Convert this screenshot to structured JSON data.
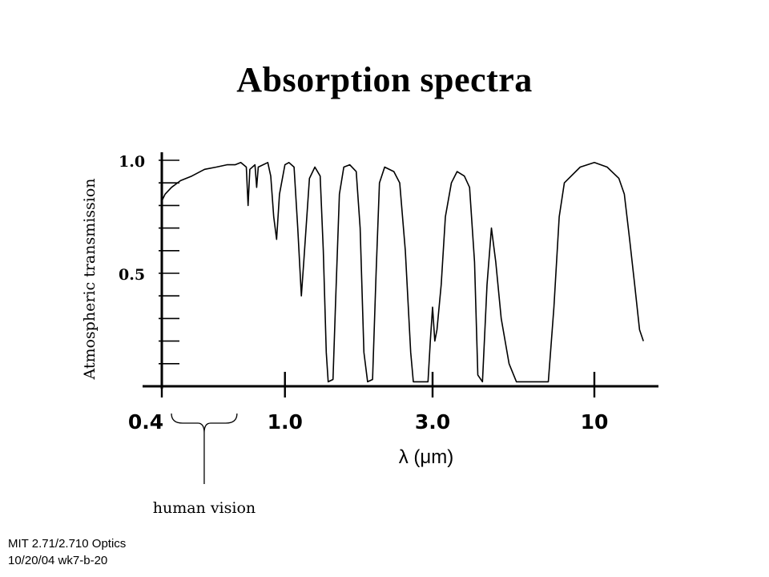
{
  "slide": {
    "title": "Absorption spectra",
    "footer_line1": "MIT 2.71/2.710 Optics",
    "footer_line2": "10/20/04 wk7-b-20"
  },
  "colors": {
    "background": "#ffffff",
    "ink": "#000000"
  },
  "chart_data": {
    "type": "line",
    "title": "",
    "ylabel": "Atmospheric transmission",
    "xlabel": "λ (μm)",
    "xscale": "log",
    "xlim": [
      0.4,
      15
    ],
    "ylim": [
      0,
      1.0
    ],
    "x_ticks": [
      {
        "value": 0.4,
        "label": "0.4"
      },
      {
        "value": 1.0,
        "label": "1.0"
      },
      {
        "value": 3.0,
        "label": "3.0"
      },
      {
        "value": 10,
        "label": "10"
      }
    ],
    "y_ticks": [
      {
        "value": 1.0,
        "label": "1.0"
      },
      {
        "value": 0.5,
        "label": "0.5"
      }
    ],
    "grid": false,
    "annotation": "human vision",
    "annotation_range": [
      0.4,
      0.7
    ],
    "series": [
      {
        "name": "",
        "points": [
          [
            0.4,
            0.82
          ],
          [
            0.41,
            0.85
          ],
          [
            0.43,
            0.88
          ],
          [
            0.46,
            0.91
          ],
          [
            0.5,
            0.93
          ],
          [
            0.55,
            0.96
          ],
          [
            0.6,
            0.97
          ],
          [
            0.65,
            0.98
          ],
          [
            0.69,
            0.98
          ],
          [
            0.72,
            0.99
          ],
          [
            0.75,
            0.97
          ],
          [
            0.76,
            0.8
          ],
          [
            0.77,
            0.96
          ],
          [
            0.8,
            0.98
          ],
          [
            0.81,
            0.88
          ],
          [
            0.82,
            0.97
          ],
          [
            0.88,
            0.99
          ],
          [
            0.9,
            0.93
          ],
          [
            0.92,
            0.75
          ],
          [
            0.94,
            0.65
          ],
          [
            0.96,
            0.85
          ],
          [
            1.0,
            0.98
          ],
          [
            1.03,
            0.99
          ],
          [
            1.07,
            0.97
          ],
          [
            1.1,
            0.7
          ],
          [
            1.13,
            0.4
          ],
          [
            1.15,
            0.55
          ],
          [
            1.2,
            0.92
          ],
          [
            1.25,
            0.97
          ],
          [
            1.3,
            0.93
          ],
          [
            1.33,
            0.6
          ],
          [
            1.36,
            0.15
          ],
          [
            1.38,
            0.02
          ],
          [
            1.43,
            0.03
          ],
          [
            1.46,
            0.4
          ],
          [
            1.5,
            0.85
          ],
          [
            1.55,
            0.97
          ],
          [
            1.62,
            0.98
          ],
          [
            1.7,
            0.95
          ],
          [
            1.75,
            0.7
          ],
          [
            1.8,
            0.15
          ],
          [
            1.85,
            0.02
          ],
          [
            1.92,
            0.03
          ],
          [
            1.97,
            0.5
          ],
          [
            2.02,
            0.9
          ],
          [
            2.1,
            0.97
          ],
          [
            2.25,
            0.95
          ],
          [
            2.35,
            0.9
          ],
          [
            2.45,
            0.6
          ],
          [
            2.55,
            0.15
          ],
          [
            2.6,
            0.02
          ],
          [
            2.9,
            0.02
          ],
          [
            2.95,
            0.2
          ],
          [
            3.0,
            0.35
          ],
          [
            3.05,
            0.2
          ],
          [
            3.1,
            0.25
          ],
          [
            3.2,
            0.45
          ],
          [
            3.3,
            0.75
          ],
          [
            3.45,
            0.9
          ],
          [
            3.6,
            0.95
          ],
          [
            3.8,
            0.93
          ],
          [
            3.95,
            0.88
          ],
          [
            4.1,
            0.55
          ],
          [
            4.2,
            0.05
          ],
          [
            4.35,
            0.02
          ],
          [
            4.5,
            0.45
          ],
          [
            4.65,
            0.7
          ],
          [
            4.8,
            0.55
          ],
          [
            5.0,
            0.3
          ],
          [
            5.3,
            0.1
          ],
          [
            5.6,
            0.02
          ],
          [
            7.1,
            0.02
          ],
          [
            7.4,
            0.35
          ],
          [
            7.7,
            0.75
          ],
          [
            8.0,
            0.9
          ],
          [
            9.0,
            0.97
          ],
          [
            10.0,
            0.99
          ],
          [
            11.0,
            0.97
          ],
          [
            12.0,
            0.92
          ],
          [
            12.5,
            0.85
          ],
          [
            13.0,
            0.65
          ],
          [
            13.5,
            0.45
          ],
          [
            14.0,
            0.25
          ],
          [
            14.4,
            0.2
          ]
        ]
      }
    ]
  }
}
